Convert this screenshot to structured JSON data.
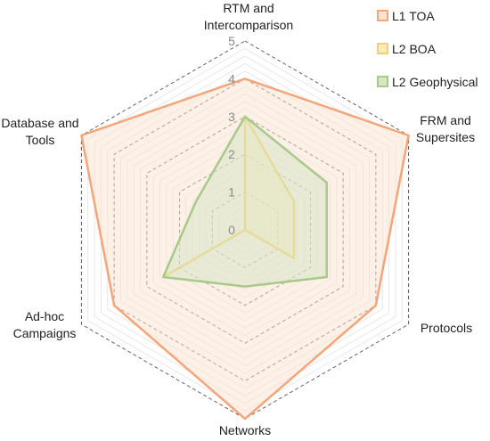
{
  "chart_data": {
    "type": "radar",
    "axes": [
      [
        "RTM and",
        "Intercomparison"
      ],
      [
        "FRM and",
        "Supersites"
      ],
      [
        "Protocols"
      ],
      [
        "Networks"
      ],
      [
        "Ad-hoc",
        "Campaigns"
      ],
      [
        "Database and",
        "Tools"
      ]
    ],
    "range": [
      0,
      5
    ],
    "ticks": [
      "0",
      "1",
      "2",
      "3",
      "4",
      "5"
    ],
    "legend_position": "top-right",
    "series": [
      {
        "name": "L1 TOA",
        "values": [
          4,
          5,
          4,
          5,
          4,
          5
        ],
        "color": "#F2A679",
        "fill": "#FBE3D3"
      },
      {
        "name": "L2 BOA",
        "values": [
          3,
          1.5,
          1.5,
          0,
          2.5,
          0
        ],
        "color": "#F2D16B",
        "fill": "#F7EBC0"
      },
      {
        "name": "L2 Geophysical",
        "values": [
          3,
          2.5,
          2.5,
          1.5,
          2.5,
          1.5
        ],
        "color": "#A9C98A",
        "fill": "#D9E6C6"
      }
    ]
  }
}
